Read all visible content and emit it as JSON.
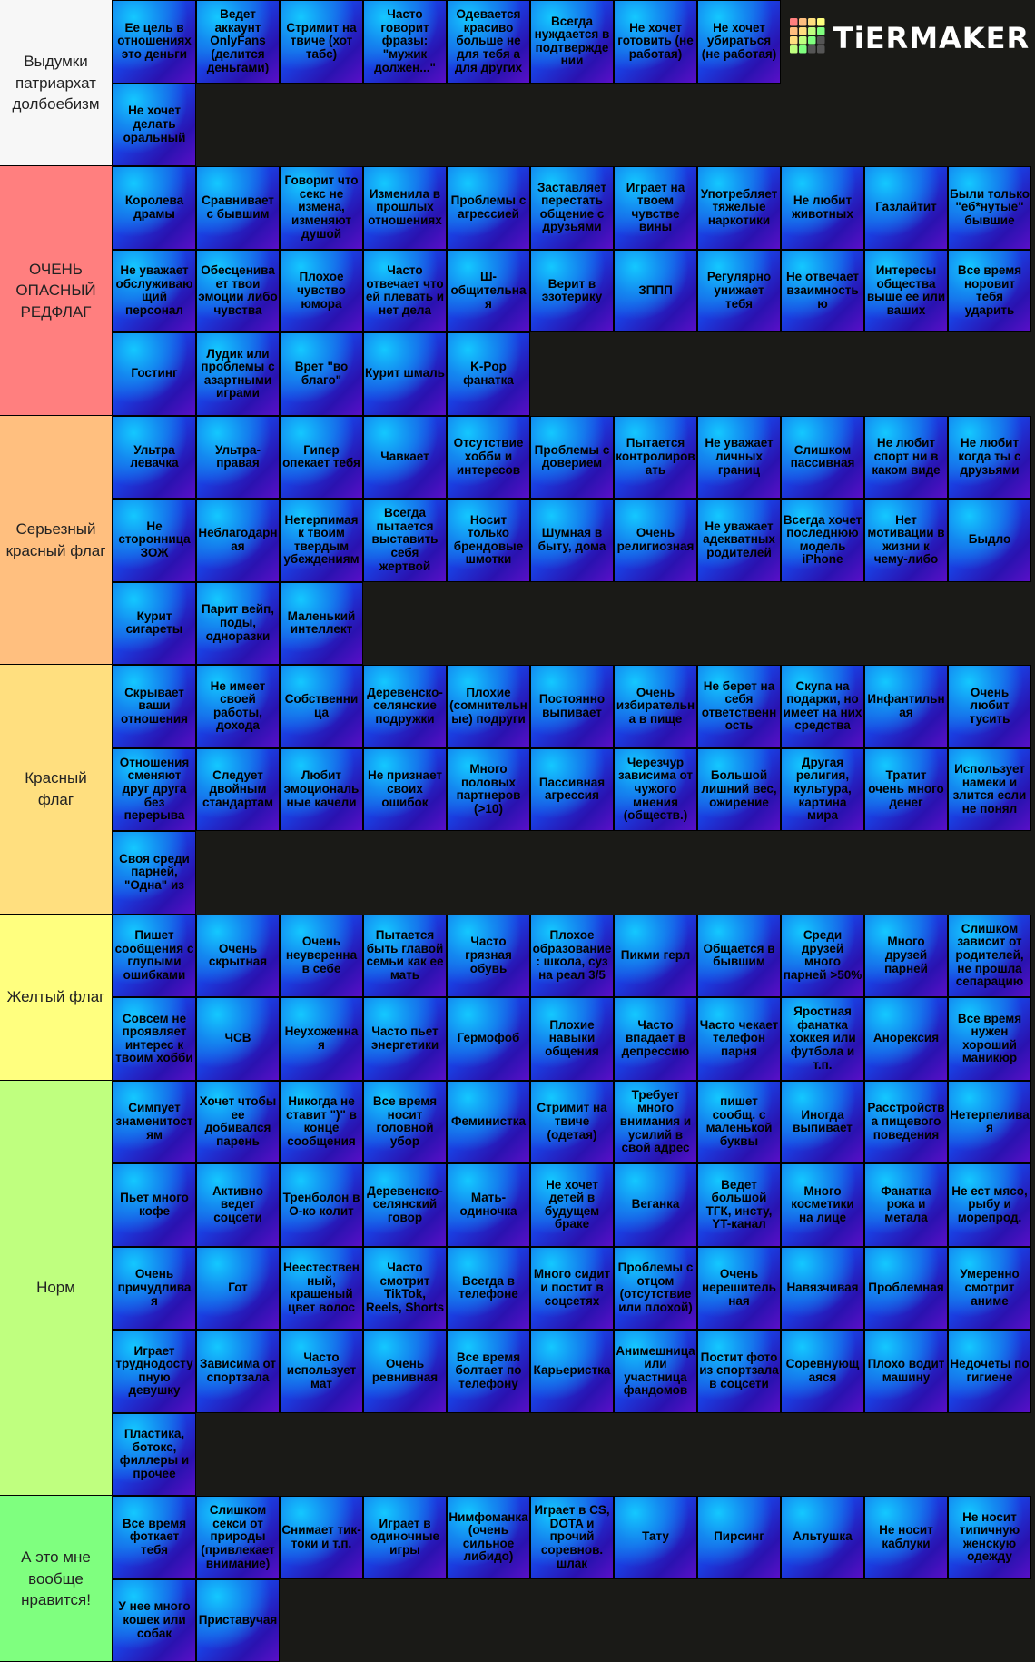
{
  "logo": "TiERMAKER",
  "tiers": [
    {
      "label": "Выдумки патриархат долбоебизм",
      "color": "#f7f7f7",
      "items": [
        "Ее цель в отношениях это деньги",
        "Ведет аккаунт OnlyFans (делится деньгами)",
        "Стримит на твиче (хот табс)",
        "Часто говорит фразы: \"мужик должен...\"",
        "Одевается красиво больше не для тебя а для других",
        "Всегда нуждается в подтверждении",
        "Не хочет готовить (не работая)",
        "Не хочет убираться (не работая)",
        "Не хочет делать оральный"
      ]
    },
    {
      "label": "ОЧЕНЬ ОПАСНЫЙ РЕДФЛАГ",
      "color": "#ff7f7f",
      "items": [
        "Королева драмы",
        "Сравнивает с бывшим",
        "Говорит что секс не измена, изменяют душой",
        "Изменила в прошлых отношениях",
        "Проблемы с агрессией",
        "Заставляет перестать общение с друзьями",
        "Играет на твоем чувстве вины",
        "Употребляет тяжелые наркотики",
        "Не любит животных",
        "Газлайтит",
        "Были только \"еб*нутые\" бывшие",
        "Не уважает обслуживающий персонал",
        "Обесценивает твои эмоции либо чувства",
        "Плохое чувство юмора",
        "Часто отвечает что ей плевать и нет дела",
        "Ш-общительная",
        "Верит в эзотерику",
        "ЗППП",
        "Регулярно унижает тебя",
        "Не отвечает взаимностью",
        "Интересы общества выше ее или ваших",
        "Все время норовит тебя ударить",
        "Гостинг",
        "Лудик или проблемы с азартными играми",
        "Врет \"во благо\"",
        "Курит шмаль",
        "K-Pop фанатка"
      ]
    },
    {
      "label": "Серьезный красный флаг",
      "color": "#ffbf7f",
      "items": [
        "Ультра левачка",
        "Ультра-правая",
        "Гипер опекает тебя",
        "Чавкает",
        "Отсутствие хобби и интересов",
        "Проблемы с доверием",
        "Пытается контролировать",
        "Не уважает личных границ",
        "Слишком пассивная",
        "Не любит спорт ни в каком виде",
        "Не любит когда ты с друзьями",
        "Не сторонница ЗОЖ",
        "Неблагодарная",
        "Нетерпимая к твоим твердым убеждениям",
        "Всегда пытается выставить себя жертвой",
        "Носит только брендовые шмотки",
        "Шумная в быту, дома",
        "Очень религиозная",
        "Не уважает адекватных родителей",
        "Всегда хочет последнюю модель iPhone",
        "Нет мотивации в жизни к чему-либо",
        "Быдло",
        "Курит сигареты",
        "Парит вейп, поды, одноразки",
        "Маленький интеллект"
      ]
    },
    {
      "label": "Красный флаг",
      "color": "#ffdf7f",
      "items": [
        "Скрывает ваши отношения",
        "Не имеет своей работы, дохода",
        "Собственница",
        "Деревенско-селянские подружки",
        "Плохие (сомнительные) подруги",
        "Постоянно выпивает",
        "Очень избирательна в пище",
        "Не берет на себя ответственность",
        "Скупа на подарки, но имеет на них средства",
        "Инфантильная",
        "Очень любит тусить",
        "Отношения сменяют друг друга без перерыва",
        "Следует двойным стандартам",
        "Любит эмоциональные качели",
        "Не признает своих ошибок",
        "Много половых партнеров (>10)",
        "Пассивная агрессия",
        "Черезчур зависима от чужого мнения (обществ.)",
        "Большой лишний вес, ожирение",
        "Другая религия, культура, картина мира",
        "Тратит очень много денег",
        "Использует намеки и злится если не понял",
        "Своя среди парней, \"Одна\" из"
      ]
    },
    {
      "label": "Желтый флаг",
      "color": "#ffff7f",
      "items": [
        "Пишет сообщения с глупыми ошибками",
        "Очень скрытная",
        "Очень неуверенна в себе",
        "Пытается быть главой семьи как ее мать",
        "Часто грязная обувь",
        "Плохое образование: школа, суз на реал 3/5",
        "Пикми герл",
        "Общается в бывшим",
        "Среди друзей много парней >50%",
        "Много друзей парней",
        "Слишком зависит от родителей, не прошла сепарацию",
        "Совсем не проявляет интерес к твоим хобби",
        "ЧСВ",
        "Неухоженная",
        "Часто пьет энергетики",
        "Гермофоб",
        "Плохие навыки общения",
        "Часто впадает в депрессию",
        "Часто чекает телефон парня",
        "Яростная фанатка хоккея или футбола и т.п.",
        "Анорексия",
        "Все время нужен хороший маникюр"
      ]
    },
    {
      "label": "Норм",
      "color": "#bfff7f",
      "items": [
        "Симпует знаменитостям",
        "Хочет чтобы ее добивался парень",
        "Никогда не ставит \")\" в конце сообщения",
        "Все время носит головной убор",
        "Феминистка",
        "Стримит на твиче (одетая)",
        "Требует много внимания и усилий в свой адрес",
        "пишет сообщ. с маленькой буквы",
        "Иногда выпивает",
        "Расстройства пищевого поведения",
        "Нетерпеливая",
        "Пьет много кофе",
        "Активно ведет соцсети",
        "Тренболон в О-ко колит",
        "Деревенско-селянский говор",
        "Мать-одиночка",
        "Не хочет детей в будущем браке",
        "Веганка",
        "Ведет большой ТГК, инсту, YT-канал",
        "Много косметики на лице",
        "Фанатка рока и метала",
        "Не ест мясо, рыбу и морепрод.",
        "Очень причудливая",
        "Гот",
        "Неестественный, крашеный цвет волос",
        "Часто смотрит TikTok, Reels, Shorts",
        "Всегда в телефоне",
        "Много сидит и постит в соцсетях",
        "Проблемы с отцом (отсутствие или плохой)",
        "Очень нерешительная",
        "Навязчивая",
        "Проблемная",
        "Умеренно смотрит аниме",
        "Играет труднодоступную девушку",
        "Зависима от спортзала",
        "Часто использует мат",
        "Очень ревнивная",
        "Все время болтает по телефону",
        "Карьеристка",
        "Анимешница или участница фандомов",
        "Постит фото из спортзала в соцсети",
        "Соревнующаяся",
        "Плохо водит машину",
        "Недочеты по гигиене",
        "Пластика, ботокс, филлеры и прочее"
      ]
    },
    {
      "label": "А это мне вообще нравится!",
      "color": "#7fff7f",
      "items": [
        "Все время фоткает тебя",
        "Слишком секси от природы (привлекает внимание)",
        "Снимает тик-токи и т.п.",
        "Играет в одиночные игры",
        "Нимфоманка (очень сильное либидо)",
        "Играет в CS, DOTA и прочий соревнов. шлак",
        "Тату",
        "Пирсинг",
        "Альтушка",
        "Не носит каблуки",
        "Не носит типичную женскую одежду",
        "У нее много кошек или собак",
        "Приставучая"
      ]
    }
  ]
}
